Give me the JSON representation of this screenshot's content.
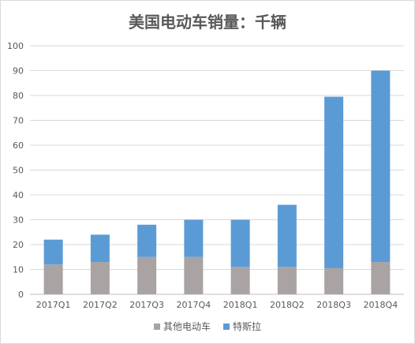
{
  "chart_data": {
    "type": "bar",
    "stacked": true,
    "title": "美国电动车销量：千辆",
    "categories": [
      "2017Q1",
      "2017Q2",
      "2017Q3",
      "2017Q4",
      "2018Q1",
      "2018Q2",
      "2018Q3",
      "2018Q4"
    ],
    "series": [
      {
        "name": "其他电动车",
        "color": "#a9a3a3",
        "values": [
          12,
          13,
          15,
          15,
          11,
          11,
          10.5,
          13
        ]
      },
      {
        "name": "特斯拉",
        "color": "#5b9bd5",
        "values": [
          10,
          11,
          13,
          15,
          19,
          25,
          69,
          77
        ]
      }
    ],
    "ylim": [
      0,
      100
    ],
    "yticks": [
      0,
      10,
      20,
      30,
      40,
      50,
      60,
      70,
      80,
      90,
      100
    ],
    "grid": true,
    "legend": "bottom",
    "xlabel": "",
    "ylabel": ""
  }
}
